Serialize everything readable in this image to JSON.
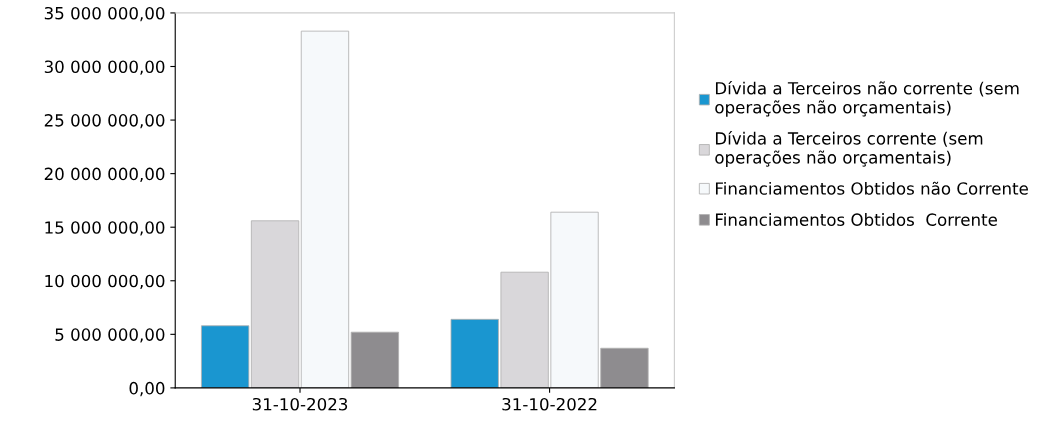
{
  "chart_data": {
    "type": "bar",
    "categories": [
      "31-10-2023",
      "31-10-2022"
    ],
    "series": [
      {
        "name": "Dívida a Terceiros não corrente (sem\noperações não orçamentais)",
        "color": "#1a96d0",
        "values": [
          5800000,
          6400000
        ]
      },
      {
        "name": "Dívida a Terceiros corrente (sem\noperações não orçamentais)",
        "color": "#d9d7da",
        "values": [
          15600000,
          10800000
        ]
      },
      {
        "name": "Financiamentos Obtidos não Corrente",
        "color": "#f6f9fb",
        "values": [
          33300000,
          16400000
        ]
      },
      {
        "name": "Financiamentos Obtidos  Corrente",
        "color": "#8e8c8f",
        "values": [
          5200000,
          3700000
        ]
      }
    ],
    "ylim": [
      0,
      35000000
    ],
    "yticks": [
      {
        "value": 0,
        "label": "0,00"
      },
      {
        "value": 5000000,
        "label": "5 000 000,00"
      },
      {
        "value": 10000000,
        "label": "10 000 000,00"
      },
      {
        "value": 15000000,
        "label": "15 000 000,00"
      },
      {
        "value": 20000000,
        "label": "20 000 000,00"
      },
      {
        "value": 25000000,
        "label": "25 000 000,00"
      },
      {
        "value": 30000000,
        "label": "30 000 000,00"
      },
      {
        "value": 35000000,
        "label": "35 000 000,00"
      }
    ],
    "grid": false,
    "legend": "right"
  }
}
